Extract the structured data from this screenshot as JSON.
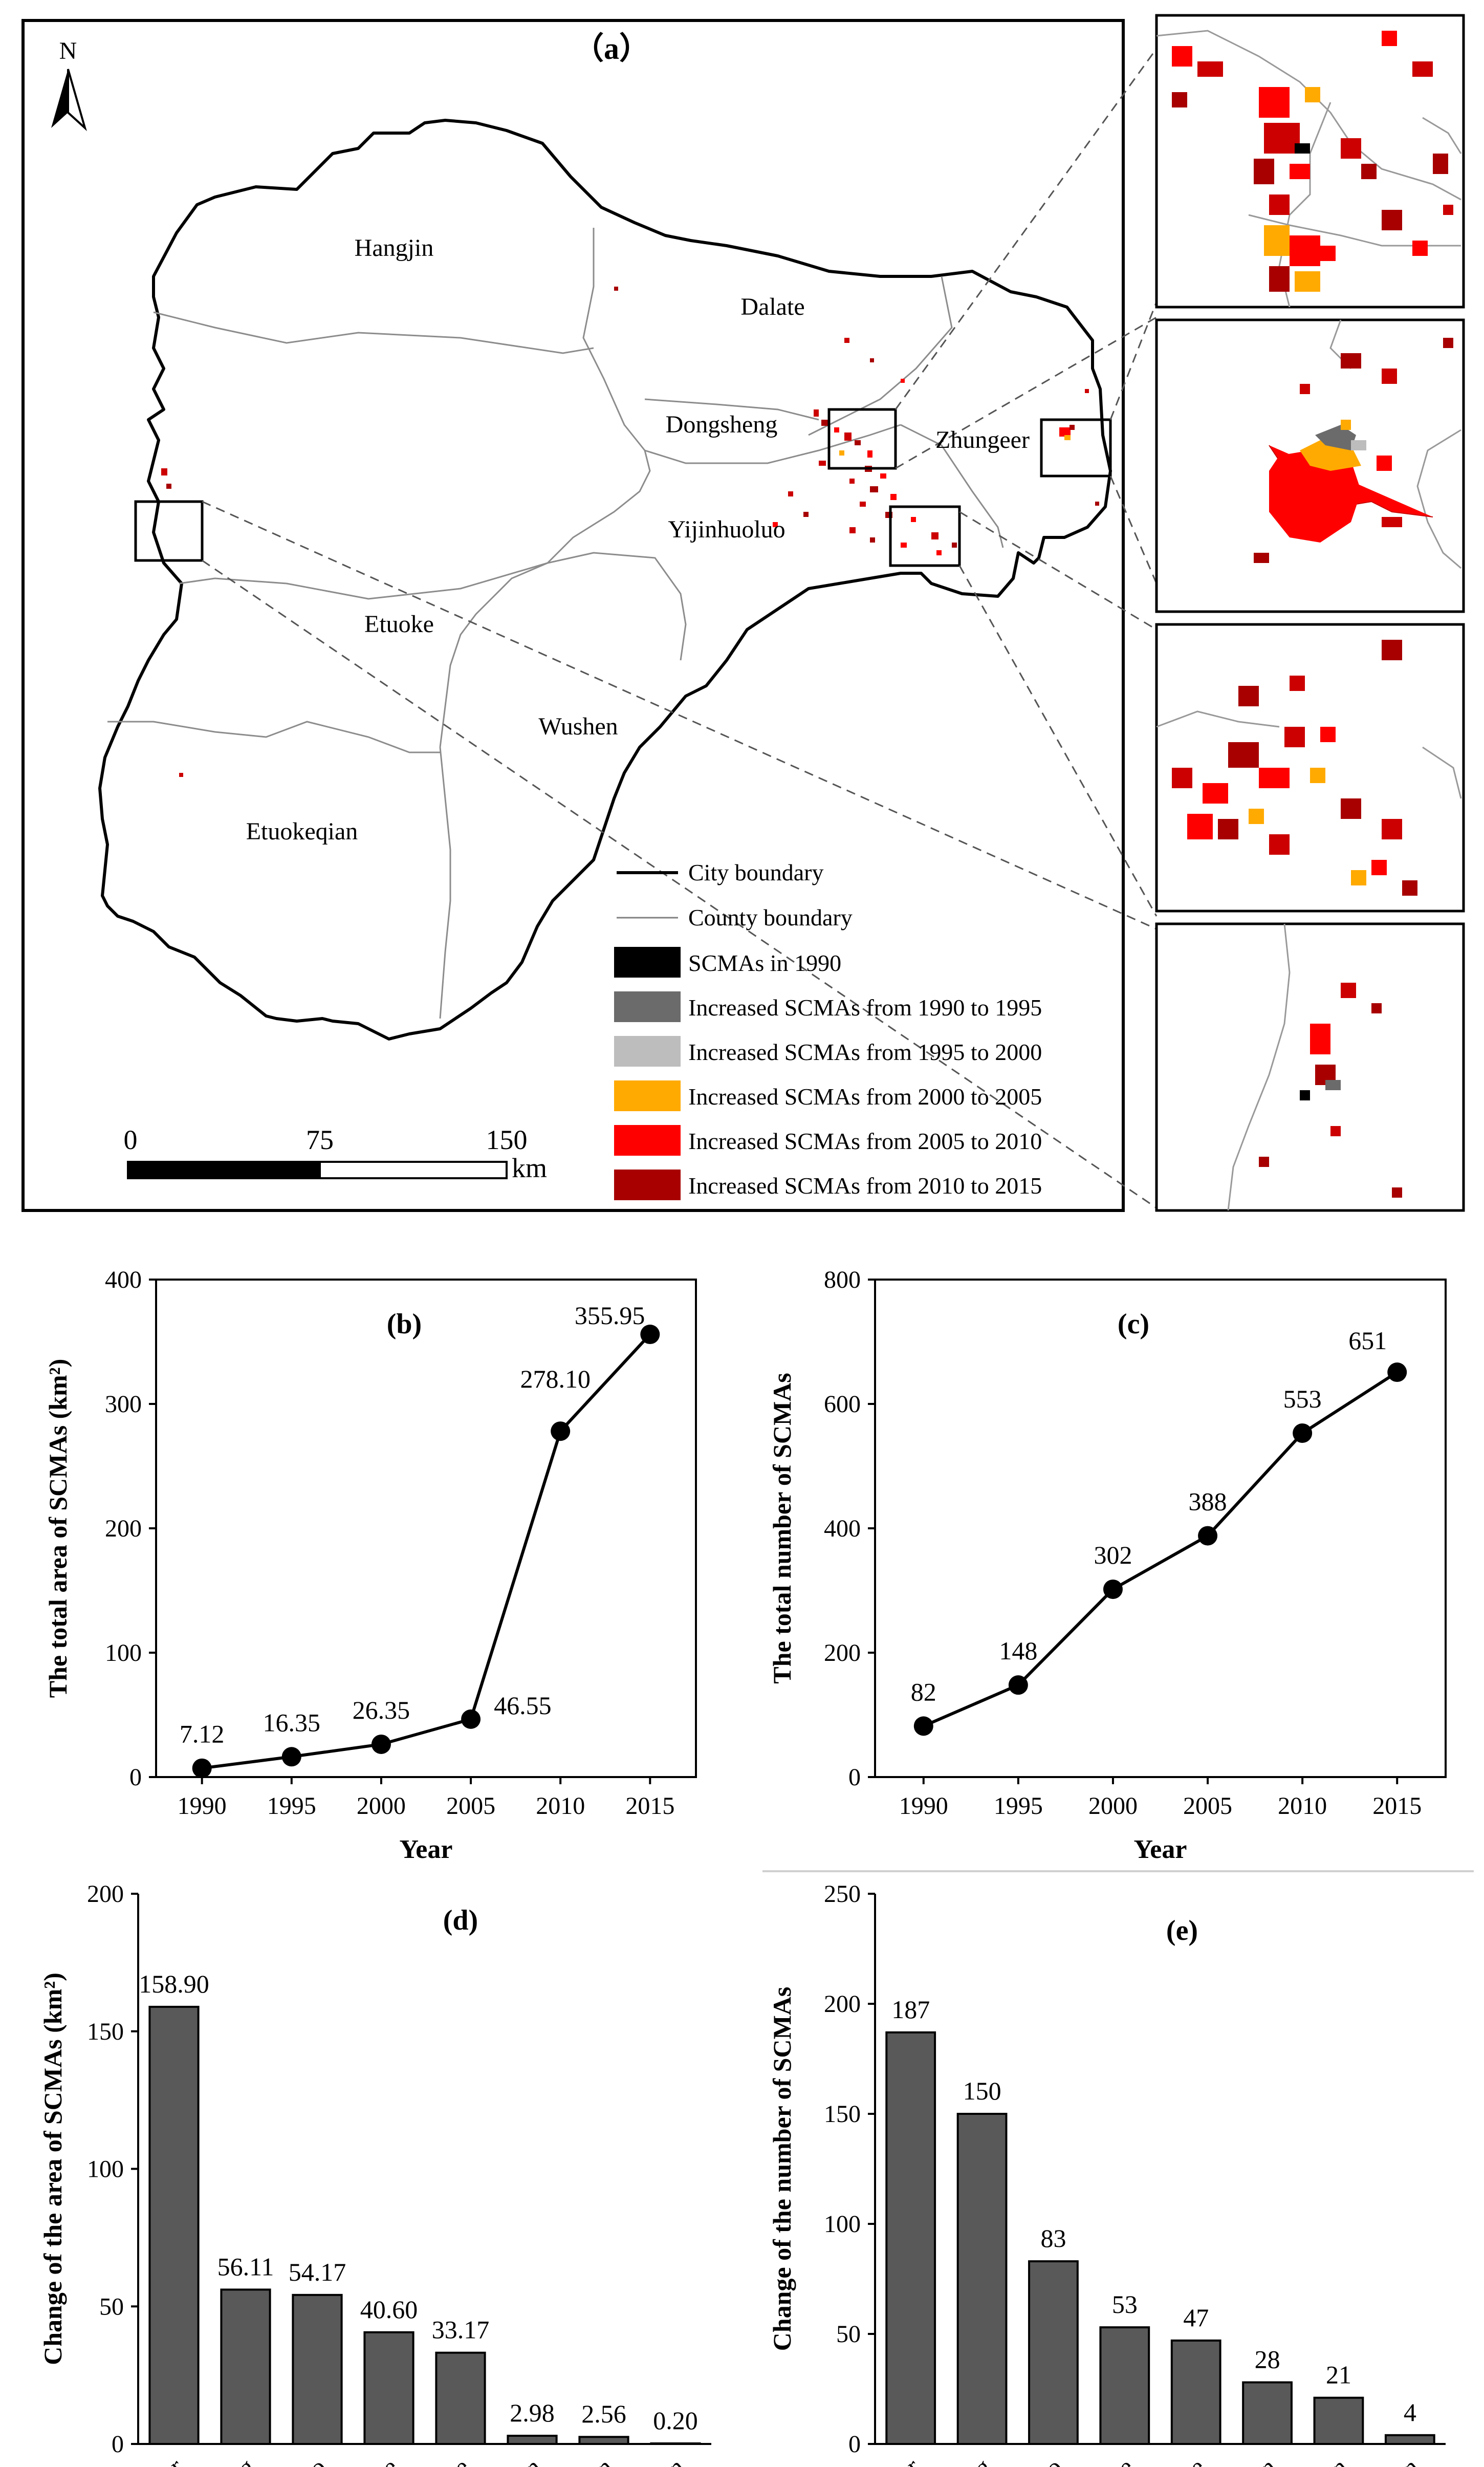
{
  "map": {
    "panel_label": "（a）",
    "north_label": "N",
    "regions": [
      "Hangjin",
      "Dalate",
      "Dongsheng",
      "Zhungeer",
      "Yijinhuoluo",
      "Etuoke",
      "Wushen",
      "Etuokeqian"
    ],
    "legend": [
      {
        "label": "City boundary",
        "kind": "line-thick",
        "color": "#000000"
      },
      {
        "label": "County boundary",
        "kind": "line-thin",
        "color": "#808080"
      },
      {
        "label": "SCMAs in 1990",
        "kind": "box",
        "color": "#000000"
      },
      {
        "label": "Increased SCMAs from 1990 to 1995",
        "kind": "box",
        "color": "#6b6b6b"
      },
      {
        "label": "Increased SCMAs from 1995 to 2000",
        "kind": "box",
        "color": "#bdbdbd"
      },
      {
        "label": "Increased SCMAs from 2000 to 2005",
        "kind": "box",
        "color": "#ffaa00"
      },
      {
        "label": "Increased SCMAs from 2005 to 2010",
        "kind": "box",
        "color": "#ff0000"
      },
      {
        "label": "Increased SCMAs from 2010 to 2015",
        "kind": "box",
        "color": "#a80000"
      }
    ],
    "scale_bar": {
      "ticks": [
        "0",
        "75",
        "150"
      ],
      "unit": "km"
    }
  },
  "chart_data": [
    {
      "id": "b",
      "type": "line",
      "title": "(b)",
      "xlabel": "Year",
      "ylabel": "The total area of SCMAs (km²)",
      "x": [
        1990,
        1995,
        2000,
        2005,
        2010,
        2015
      ],
      "values": [
        7.12,
        16.35,
        26.35,
        46.55,
        278.1,
        355.95
      ],
      "labels": [
        "7.12",
        "16.35",
        "26.35",
        "46.55",
        "278.10",
        "355.95"
      ],
      "ylim": [
        0,
        400
      ],
      "yticks": [
        0,
        100,
        200,
        300,
        400
      ]
    },
    {
      "id": "c",
      "type": "line",
      "title": "(c)",
      "xlabel": "Year",
      "ylabel": "The total number of SCMAs",
      "x": [
        1990,
        1995,
        2000,
        2005,
        2010,
        2015
      ],
      "values": [
        82,
        148,
        302,
        388,
        553,
        651
      ],
      "labels": [
        "82",
        "148",
        "302",
        "388",
        "553",
        "651"
      ],
      "ylim": [
        0,
        800
      ],
      "yticks": [
        0,
        200,
        400,
        600,
        800
      ]
    },
    {
      "id": "d",
      "type": "bar",
      "title": "(d)",
      "xlabel": "",
      "ylabel": "Change of the area of SCMAs (km²)",
      "categories": [
        "Zhungeer",
        "Dongsheng",
        "Yijinhuoluo",
        "Dalate",
        "Etuoke",
        "Etuokeqian",
        "Wushen",
        "Hangjin"
      ],
      "values": [
        158.9,
        56.11,
        54.17,
        40.6,
        33.17,
        2.98,
        2.56,
        0.2
      ],
      "labels": [
        "158.90",
        "56.11",
        "54.17",
        "40.60",
        "33.17",
        "2.98",
        "2.56",
        "0.20"
      ],
      "ylim": [
        0,
        200
      ],
      "yticks": [
        0,
        50,
        100,
        150,
        200
      ]
    },
    {
      "id": "e",
      "type": "bar",
      "title": "(e)",
      "xlabel": "",
      "ylabel": "Change of the number  of SCMAs",
      "categories": [
        "Zhungeer",
        "Dongsheng",
        "Yijinhuoluo",
        "Dalate",
        "Etuoke",
        "Etuokeqian",
        "Wushen",
        "Hangjin"
      ],
      "values": [
        187,
        150,
        83,
        53,
        47,
        28,
        21,
        4
      ],
      "labels": [
        "187",
        "150",
        "83",
        "53",
        "47",
        "28",
        "21",
        "4"
      ],
      "ylim": [
        0,
        250
      ],
      "yticks": [
        0,
        50,
        100,
        150,
        200,
        250
      ]
    }
  ]
}
